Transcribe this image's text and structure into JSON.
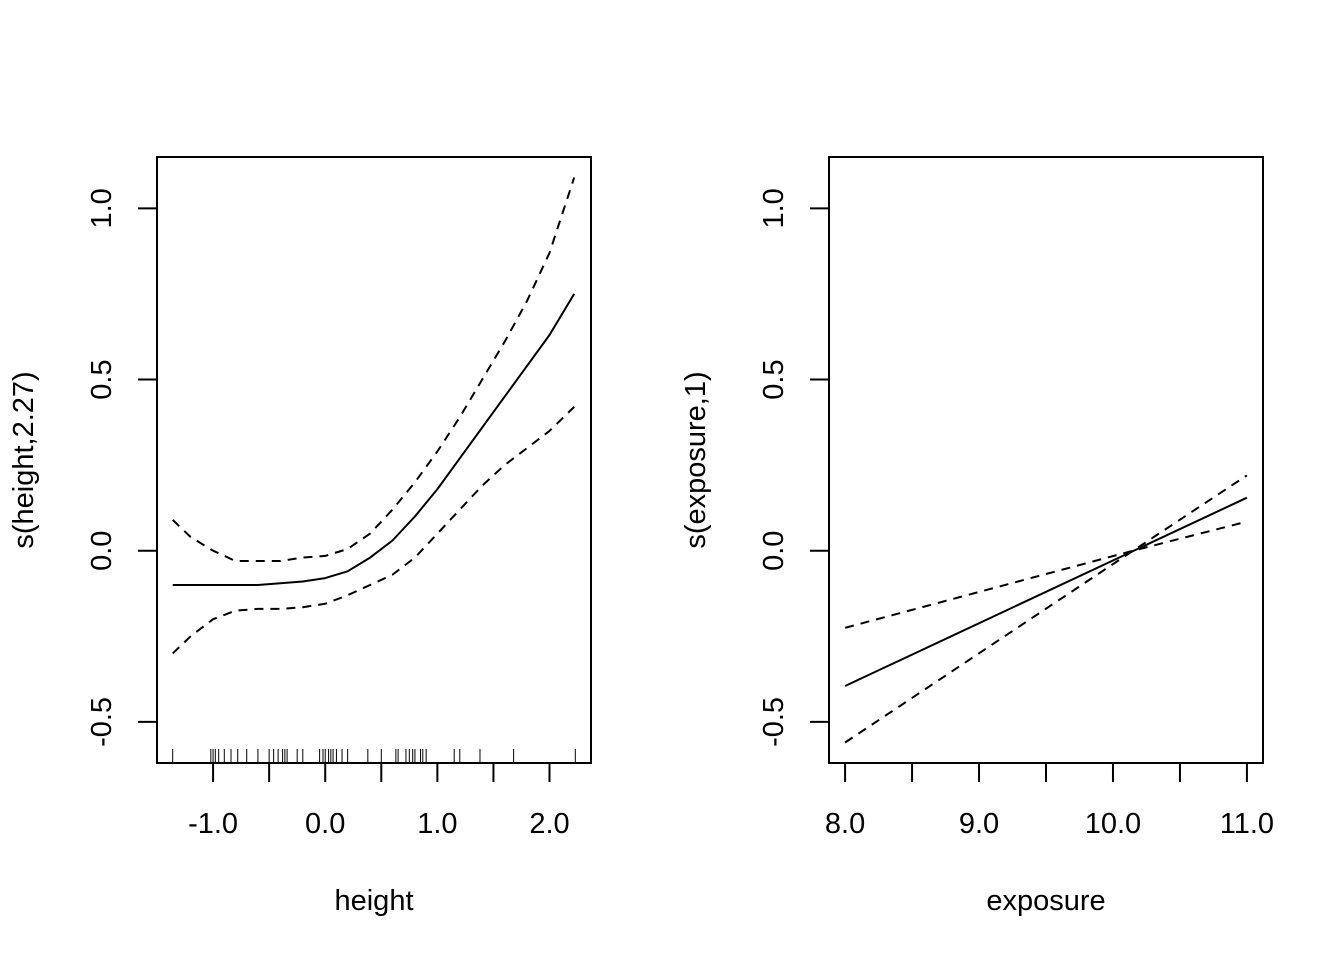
{
  "chart_data": [
    {
      "type": "line",
      "xlabel": "height",
      "ylabel": "s(height,2.27)",
      "xlim": [
        -1.5,
        2.37
      ],
      "ylim": [
        -0.62,
        1.15
      ],
      "xticks": [
        -1.0,
        -0.5,
        0.0,
        0.5,
        1.0,
        1.5,
        2.0
      ],
      "xtick_labels": [
        "-1.0",
        "",
        "0.0",
        "",
        "1.0",
        "",
        "2.0"
      ],
      "yticks": [
        -0.5,
        0.0,
        0.5,
        1.0
      ],
      "ytick_labels": [
        "-0.5",
        "0.0",
        "0.5",
        "1.0"
      ],
      "grid": false,
      "series": [
        {
          "style": "solid",
          "x": [
            -1.36,
            -1.0,
            -0.6,
            -0.2,
            0.0,
            0.2,
            0.4,
            0.6,
            0.8,
            1.0,
            1.2,
            1.4,
            1.6,
            1.8,
            2.0,
            2.22
          ],
          "y": [
            -0.1,
            -0.1,
            -0.1,
            -0.09,
            -0.08,
            -0.06,
            -0.02,
            0.03,
            0.1,
            0.18,
            0.27,
            0.36,
            0.45,
            0.54,
            0.63,
            0.75
          ]
        },
        {
          "style": "dashed",
          "x": [
            -1.36,
            -1.2,
            -1.0,
            -0.8,
            -0.6,
            -0.4,
            -0.2,
            0.0,
            0.2,
            0.4,
            0.6,
            0.8,
            1.0,
            1.2,
            1.4,
            1.6,
            1.8,
            2.0,
            2.22
          ],
          "y": [
            0.09,
            0.04,
            0.0,
            -0.03,
            -0.03,
            -0.03,
            -0.02,
            -0.015,
            0.005,
            0.05,
            0.12,
            0.2,
            0.29,
            0.39,
            0.5,
            0.61,
            0.73,
            0.87,
            1.09
          ]
        },
        {
          "style": "dashed",
          "x": [
            -1.36,
            -1.2,
            -1.0,
            -0.8,
            -0.6,
            -0.4,
            -0.2,
            0.0,
            0.2,
            0.4,
            0.6,
            0.8,
            1.0,
            1.2,
            1.4,
            1.6,
            1.8,
            2.0,
            2.22
          ],
          "y": [
            -0.3,
            -0.25,
            -0.2,
            -0.175,
            -0.17,
            -0.17,
            -0.165,
            -0.155,
            -0.13,
            -0.1,
            -0.07,
            -0.02,
            0.05,
            0.12,
            0.19,
            0.25,
            0.3,
            0.35,
            0.42
          ]
        }
      ],
      "rug": [
        -1.36,
        -1.02,
        -1.0,
        -0.98,
        -0.95,
        -0.9,
        -0.84,
        -0.78,
        -0.7,
        -0.6,
        -0.5,
        -0.46,
        -0.42,
        -0.38,
        -0.36,
        -0.34,
        -0.25,
        -0.2,
        -0.05,
        -0.02,
        0.0,
        0.03,
        0.05,
        0.07,
        0.1,
        0.15,
        0.2,
        0.38,
        0.5,
        0.63,
        0.65,
        0.72,
        0.75,
        0.78,
        0.8,
        0.85,
        0.87,
        0.9,
        1.15,
        1.2,
        1.38,
        1.68,
        2.23
      ]
    },
    {
      "type": "line",
      "xlabel": "exposure",
      "ylabel": "s(exposure,1)",
      "xlim": [
        7.88,
        11.12
      ],
      "ylim": [
        -0.62,
        1.15
      ],
      "xticks": [
        8.0,
        8.5,
        9.0,
        9.5,
        10.0,
        10.5,
        11.0
      ],
      "xtick_labels": [
        "8.0",
        "",
        "9.0",
        "",
        "10.0",
        "",
        "11.0"
      ],
      "yticks": [
        -0.5,
        0.0,
        0.5,
        1.0
      ],
      "ytick_labels": [
        "-0.5",
        "0.0",
        "0.5",
        "1.0"
      ],
      "grid": false,
      "series": [
        {
          "style": "solid",
          "x": [
            8.0,
            11.0
          ],
          "y": [
            -0.395,
            0.155
          ]
        },
        {
          "style": "dashed",
          "x": [
            8.0,
            10.15,
            11.0
          ],
          "y": [
            -0.225,
            0.0,
            0.085
          ]
        },
        {
          "style": "dashed",
          "x": [
            8.0,
            10.15,
            11.0
          ],
          "y": [
            -0.56,
            0.0,
            0.22
          ]
        }
      ]
    }
  ]
}
